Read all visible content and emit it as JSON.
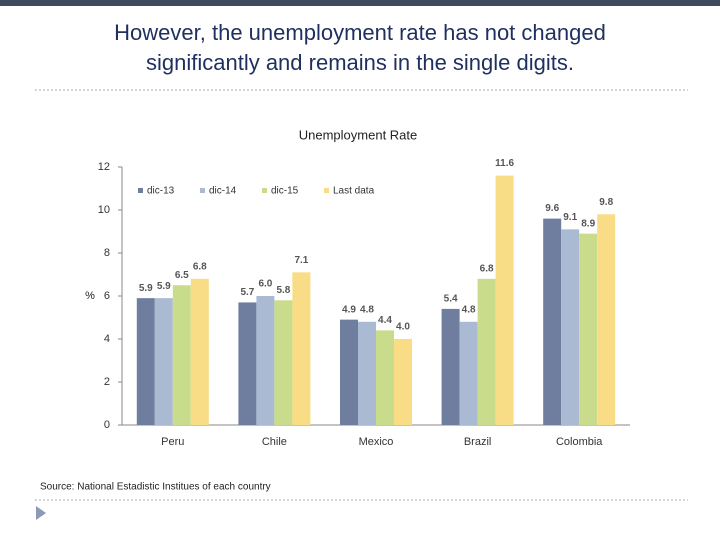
{
  "title": "However, the unemployment rate has not changed significantly and remains in the single digits.",
  "source": "Source: National Estadistic Institues of each country",
  "chart_data": {
    "type": "bar",
    "title": "Unemployment Rate",
    "y_label": "%",
    "categories": [
      "Peru",
      "Chile",
      "Mexico",
      "Brazil",
      "Colombia"
    ],
    "series": [
      {
        "name": "dic-13",
        "color": "#6f7d9e",
        "values": [
          5.9,
          5.7,
          4.9,
          5.4,
          9.6
        ],
        "value_labels": [
          "5.9",
          "5.7",
          "4.9",
          "5.4",
          "9.6"
        ]
      },
      {
        "name": "dic-14",
        "color": "#a9bad2",
        "values": [
          5.9,
          6.0,
          4.8,
          4.8,
          9.1
        ],
        "value_labels": [
          "5.9",
          "6.0",
          "4.8",
          "4.8",
          "9.1"
        ]
      },
      {
        "name": "dic-15",
        "color": "#c9dc8c",
        "values": [
          6.5,
          5.8,
          4.4,
          6.8,
          8.9
        ],
        "value_labels": [
          "6.5",
          "5.8",
          "4.4",
          "6.8",
          "8.9"
        ]
      },
      {
        "name": "Last data",
        "color": "#f9dc86",
        "values": [
          6.8,
          7.1,
          4.0,
          11.6,
          9.8
        ],
        "value_labels": [
          "6.8",
          "7.1",
          "4.0",
          "11.6",
          "9.8"
        ]
      }
    ],
    "ylim": [
      0,
      12
    ],
    "yticks": [
      0,
      2,
      4,
      6,
      8,
      10,
      12
    ],
    "grid": false
  }
}
